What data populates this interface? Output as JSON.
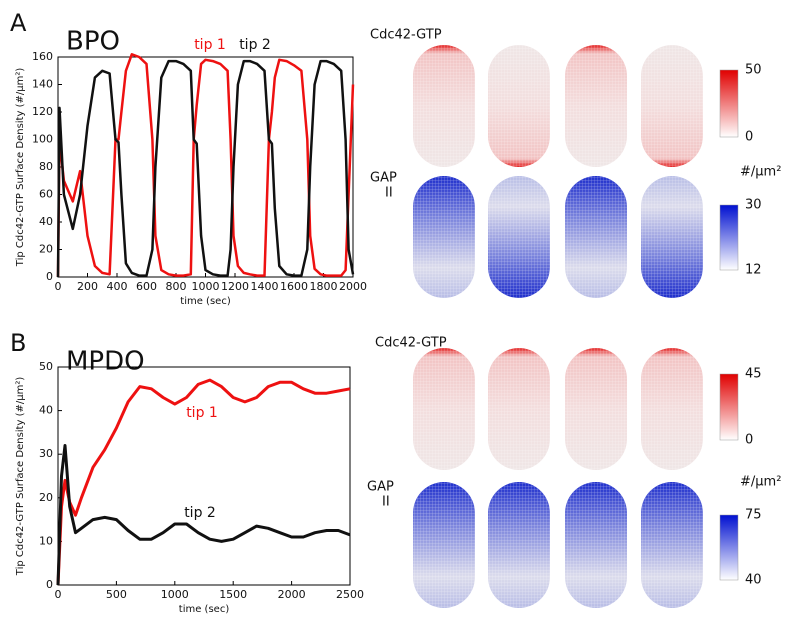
{
  "chart_data": [
    {
      "type": "line",
      "panel_label": "A",
      "title": "BPO",
      "xlabel": "time (sec)",
      "ylabel": "Tip Cdc42-GTP Surface Density (#/μm²)",
      "legend": "top",
      "x": [
        0,
        10,
        40,
        100,
        150,
        200,
        250,
        300,
        350,
        390,
        410,
        430,
        460,
        500,
        550,
        600,
        640,
        660,
        700,
        750,
        800,
        850,
        900,
        920,
        940,
        970,
        1000,
        1050,
        1100,
        1150,
        1170,
        1190,
        1220,
        1260,
        1300,
        1350,
        1400,
        1430,
        1450,
        1470,
        1500,
        1550,
        1600,
        1650,
        1690,
        1710,
        1740,
        1780,
        1820,
        1870,
        1920,
        1950,
        1970,
        2000
      ],
      "series": [
        {
          "name": "tip 1",
          "color": "#ee1111",
          "values": [
            0,
            100,
            70,
            55,
            77,
            30,
            8,
            3,
            2,
            100,
            100,
            120,
            150,
            162,
            160,
            155,
            100,
            30,
            5,
            2,
            1,
            1,
            2,
            100,
            125,
            155,
            158,
            157,
            155,
            150,
            100,
            30,
            8,
            3,
            2,
            1,
            1,
            100,
            120,
            145,
            158,
            157,
            154,
            150,
            100,
            30,
            6,
            2,
            1,
            1,
            1,
            5,
            60,
            140
          ]
        },
        {
          "name": "tip 2",
          "color": "#111111",
          "values": [
            0,
            123,
            60,
            35,
            60,
            110,
            145,
            150,
            148,
            100,
            98,
            60,
            10,
            3,
            1,
            1,
            20,
            80,
            145,
            157,
            157,
            155,
            150,
            100,
            97,
            30,
            5,
            2,
            1,
            1,
            20,
            80,
            140,
            157,
            157,
            155,
            150,
            100,
            97,
            50,
            8,
            2,
            1,
            1,
            20,
            80,
            140,
            157,
            157,
            155,
            150,
            100,
            20,
            2
          ]
        }
      ],
      "xlim": [
        0,
        2000
      ],
      "xticks": [
        0,
        200,
        400,
        600,
        800,
        1000,
        1200,
        1400,
        1600,
        1800,
        2000
      ],
      "ylim": [
        0,
        160
      ],
      "yticks": [
        0,
        20,
        40,
        60,
        80,
        100,
        120,
        140,
        160
      ]
    },
    {
      "type": "line",
      "panel_label": "B",
      "title": "MPDO",
      "xlabel": "time (sec)",
      "ylabel": "Tip Cdc42-GTP Surface Density (#/μm²)",
      "legend": "inline",
      "x": [
        0,
        30,
        60,
        100,
        150,
        200,
        300,
        400,
        500,
        600,
        700,
        800,
        900,
        1000,
        1100,
        1200,
        1300,
        1400,
        1500,
        1600,
        1700,
        1800,
        1900,
        2000,
        2100,
        2200,
        2300,
        2400,
        2500
      ],
      "series": [
        {
          "name": "tip 1",
          "color": "#ee1111",
          "values": [
            0,
            18,
            24,
            19,
            16,
            20,
            27,
            31,
            36,
            42,
            45.5,
            45,
            43,
            41.5,
            43,
            46,
            47,
            45.5,
            43,
            42,
            43,
            45.5,
            46.5,
            46.5,
            45,
            44,
            44,
            44.5,
            45
          ]
        },
        {
          "name": "tip 2",
          "color": "#111111",
          "values": [
            0,
            25,
            32,
            18,
            12,
            13,
            15,
            15.5,
            15,
            12.5,
            10.5,
            10.5,
            12,
            14,
            14,
            12,
            10.5,
            10,
            10.5,
            12,
            13.5,
            13,
            12,
            11,
            11,
            12,
            12.5,
            12.5,
            11.5
          ]
        }
      ],
      "xlim": [
        0,
        2500
      ],
      "xticks": [
        0,
        500,
        1000,
        1500,
        2000,
        2500
      ],
      "ylim": [
        0,
        50
      ],
      "yticks": [
        0,
        10,
        20,
        30,
        40,
        50
      ]
    }
  ],
  "heatmaps": [
    {
      "label": "Cdc42-GTP",
      "colorbar": [
        0,
        50
      ]
    },
    {
      "label": "GAP",
      "subscript": "II",
      "unit": "#/μm²",
      "colorbar": [
        12,
        30
      ]
    },
    {
      "label": "Cdc42-GTP",
      "colorbar": [
        0,
        45
      ]
    },
    {
      "label": "GAP",
      "subscript": "II",
      "unit": "#/μm²",
      "colorbar": [
        40,
        75
      ]
    }
  ]
}
